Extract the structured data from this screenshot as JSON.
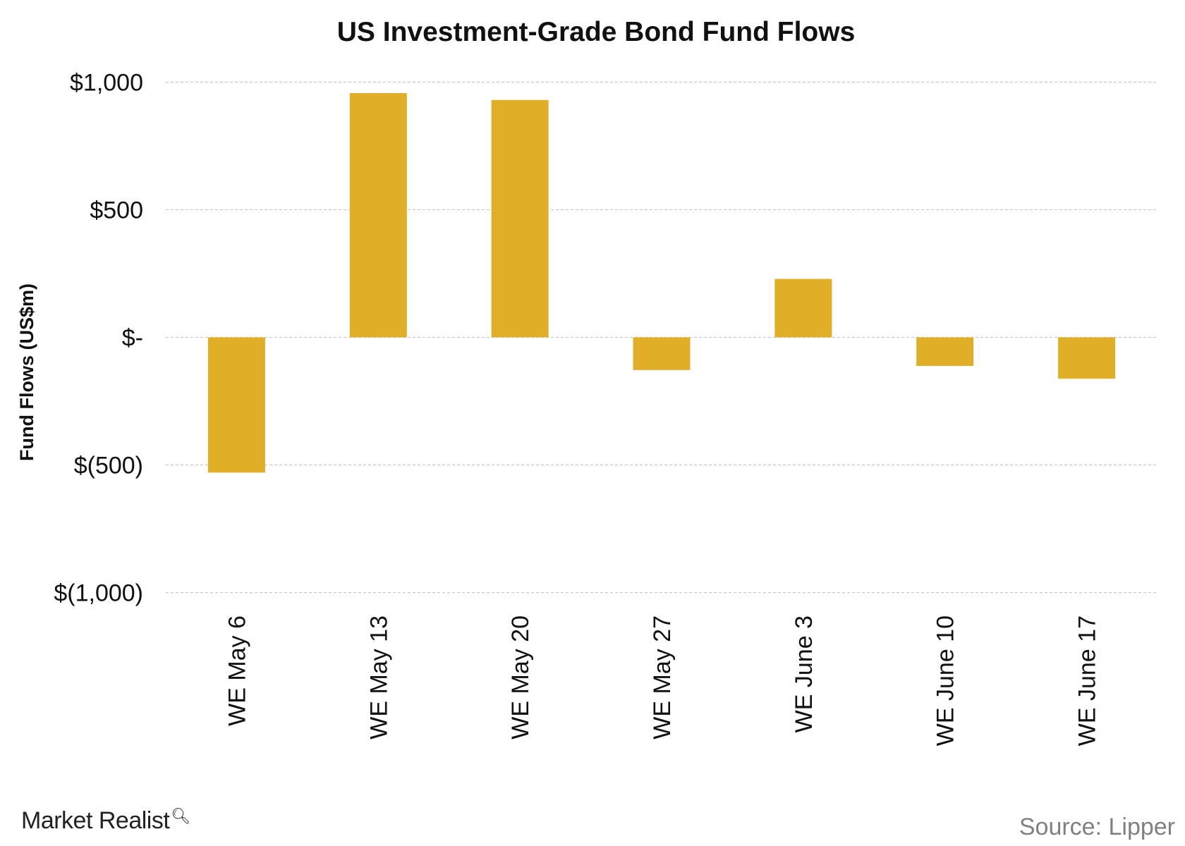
{
  "chart_data": {
    "type": "bar",
    "title": "US Investment-Grade Bond Fund Flows",
    "xlabel": "",
    "ylabel": "Fund Flows (US$m)",
    "categories": [
      "WE May 6",
      "WE May 13",
      "WE May 20",
      "WE May 27",
      "WE June 3",
      "WE June 10",
      "WE June 17"
    ],
    "values": [
      -530,
      957,
      930,
      -128,
      229,
      -112,
      -162
    ],
    "ylim": [
      -1000,
      1000
    ],
    "yticks": [
      1000,
      500,
      0,
      -500,
      -1000
    ],
    "ytick_labels": [
      "$1,000",
      "$500",
      "$-",
      "$(500)",
      "$(1,000)"
    ],
    "grid": "horizontal dashed",
    "legend": "none",
    "bar_color": "#E1AE27"
  },
  "footer": {
    "logo_text": "Market Realist",
    "source": "Source: Lipper"
  }
}
